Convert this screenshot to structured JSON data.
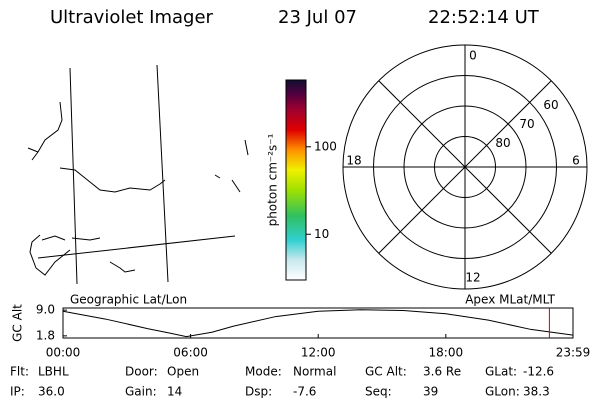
{
  "header": {
    "instrument": "Ultraviolet Imager",
    "date": "23 Jul 07",
    "time": "22:52:14 UT"
  },
  "map": {
    "label": "Geographic Lat/Lon"
  },
  "colorbar": {
    "label": "photon cm⁻²s⁻¹",
    "log": true,
    "clim": [
      3,
      580
    ],
    "ticks": [
      10,
      100
    ]
  },
  "polar": {
    "label": "Apex MLat/MLT",
    "rlim": [
      90,
      50
    ],
    "rticks": [
      80,
      70,
      60
    ],
    "mlt_ticks": [
      0,
      6,
      12,
      18
    ]
  },
  "chart_data": {
    "type": "line",
    "ylabel": "GC Alt",
    "x": [
      0,
      2,
      4,
      5,
      5.8,
      7,
      8,
      10,
      12,
      14,
      16,
      18,
      20,
      22,
      23.98
    ],
    "values": [
      8.7,
      6.5,
      3.8,
      2.6,
      1.6,
      2.8,
      4.5,
      7.2,
      8.7,
      9.1,
      8.9,
      8.0,
      6.2,
      3.6,
      2.0
    ],
    "color": "#000000",
    "xlim": [
      0,
      23.98
    ],
    "xticks": [
      {
        "value": 0,
        "label": "00:00"
      },
      {
        "value": 6,
        "label": "06:00"
      },
      {
        "value": 12,
        "label": "12:00"
      },
      {
        "value": 18,
        "label": "18:00"
      },
      {
        "value": 23.98,
        "label": "23:59"
      }
    ],
    "ylim": [
      1.2,
      9.6
    ],
    "yticks": [
      {
        "value": 1.8,
        "label": "1.8"
      },
      {
        "value": 9,
        "label": "9.0"
      }
    ],
    "marker_x": 22.87,
    "marker_color": "#cc0000"
  },
  "info": [
    [
      {
        "label": "Flt:",
        "value": "LBHL"
      },
      {
        "label": "Door:",
        "value": "Open"
      },
      {
        "label": "Mode:",
        "value": "Normal"
      },
      {
        "label": "GC Alt:",
        "value": "3.6 Re"
      },
      {
        "label": "GLat:",
        "value": "-12.6"
      }
    ],
    [
      {
        "label": "IP:",
        "value": "36.0"
      },
      {
        "label": "Gain:",
        "value": "14"
      },
      {
        "label": "Dsp:",
        "value": "-7.6"
      },
      {
        "label": "Seq:",
        "value": "39"
      },
      {
        "label": "GLon:",
        "value": "38.3"
      }
    ]
  ]
}
